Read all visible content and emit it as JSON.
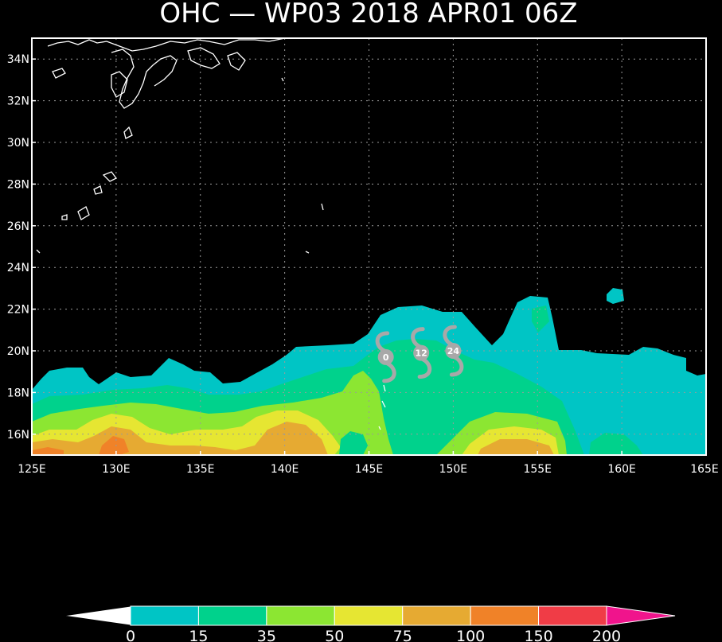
{
  "title": "OHC — WP03 2018 APR01 06Z",
  "map": {
    "lat_ticks": [
      "34N",
      "32N",
      "30N",
      "28N",
      "26N",
      "24N",
      "22N",
      "20N",
      "18N",
      "16N"
    ],
    "lon_ticks": [
      "125E",
      "130E",
      "135E",
      "140E",
      "145E",
      "150E",
      "155E",
      "160E",
      "165E"
    ],
    "lat_range": [
      15,
      35
    ],
    "lon_range": [
      125,
      165
    ]
  },
  "track": [
    {
      "label": "0",
      "lon": 146.0,
      "lat": 19.7
    },
    {
      "label": "12",
      "lon": 148.1,
      "lat": 19.9
    },
    {
      "label": "24",
      "lon": 150.0,
      "lat": 20.0
    }
  ],
  "colorbar": {
    "ticks": [
      "0",
      "15",
      "35",
      "50",
      "75",
      "100",
      "150",
      "200"
    ],
    "colors": [
      "#00c5c5",
      "#00d28c",
      "#8ce632",
      "#e6e632",
      "#e6aa32",
      "#f08228",
      "#f03c46",
      "#f0148c"
    ],
    "under_color": "#ffffff",
    "over_color": "#f0148c"
  },
  "colors": {
    "background": "#000000",
    "frame": "#ffffff",
    "grid": "#9a9a9a",
    "coast": "#ffffff",
    "track": "#a8a8a8"
  }
}
